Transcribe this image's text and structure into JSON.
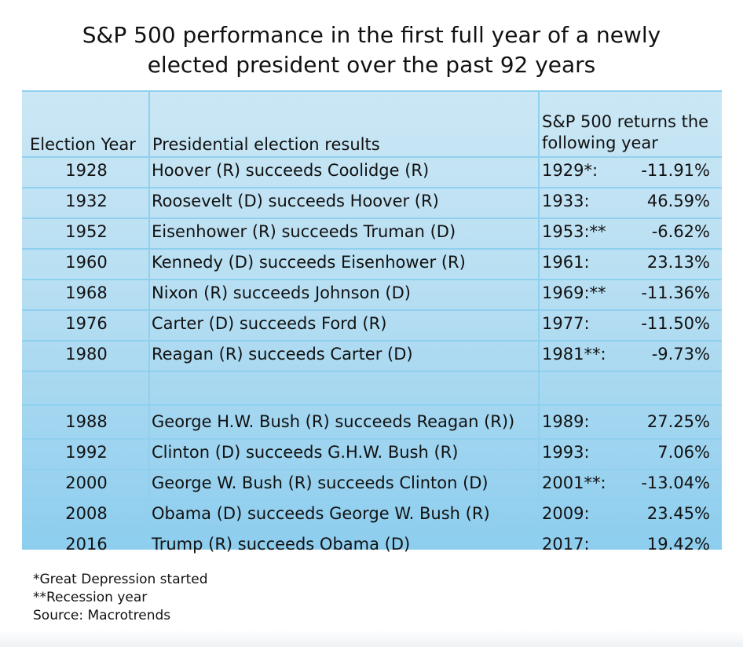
{
  "title_line1": "S&P 500 performance in the first full year of a newly",
  "title_line2": "elected president over the past 92 years",
  "headers": {
    "col1": "Election Year",
    "col2": "Presidential election results",
    "col3_line1": "S&P 500 returns the",
    "col3_line2": "following year"
  },
  "rows": [
    {
      "year": "1928",
      "result": "Hoover (R) succeeds Coolidge (R)",
      "next": "1929*:",
      "ret": "-11.91%"
    },
    {
      "year": "1932",
      "result": "Roosevelt (D) succeeds Hoover (R)",
      "next": "1933:",
      "ret": "46.59%"
    },
    {
      "year": "1952",
      "result": "Eisenhower (R) succeeds Truman (D)",
      "next": "1953:**",
      "ret": "-6.62%"
    },
    {
      "year": "1960",
      "result": "Kennedy (D) succeeds Eisenhower (R)",
      "next": "1961:",
      "ret": "23.13%"
    },
    {
      "year": "1968",
      "result": "Nixon (R) succeeds Johnson (D)",
      "next": "1969:**",
      "ret": "-11.36%"
    },
    {
      "year": "1976",
      "result": "Carter (D) succeeds Ford (R)",
      "next": "1977:",
      "ret": "-11.50%"
    },
    {
      "year": "1980",
      "result": "Reagan (R) succeeds Carter (D)",
      "next": "1981**:",
      "ret": "-9.73%"
    },
    {
      "year": "",
      "result": "",
      "next": "",
      "ret": ""
    },
    {
      "year": "1988",
      "result": "George H.W. Bush (R) succeeds Reagan (R))",
      "next": "1989:",
      "ret": "27.25%"
    },
    {
      "year": "1992",
      "result": "Clinton (D) succeeds G.H.W. Bush (R)",
      "next": "1993:",
      "ret": "7.06%"
    },
    {
      "year": "2000",
      "result": "George W. Bush (R) succeeds Clinton (D)",
      "next": "2001**:",
      "ret": "-13.04%"
    },
    {
      "year": "2008",
      "result": "Obama (D) succeeds George W. Bush (R)",
      "next": "2009:",
      "ret": "23.45%"
    },
    {
      "year": "2016",
      "result": "Trump (R) succeeds Obama (D)",
      "next": "2017:",
      "ret": "19.42%"
    }
  ],
  "footnotes": [
    "*Great Depression started",
    "**Recession year",
    "Source: Macrotrends"
  ]
}
